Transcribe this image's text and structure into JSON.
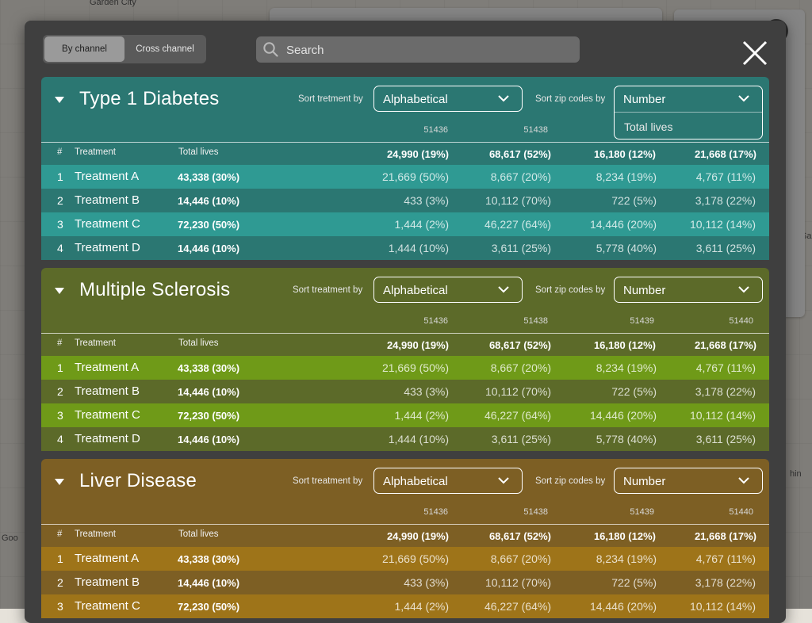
{
  "map": {
    "labels": [
      "Garden City",
      "Goo",
      "Sa",
      "hin"
    ]
  },
  "modal": {
    "view_toggle": {
      "active": "By channel",
      "inactive": "Cross channel"
    },
    "search": {
      "placeholder": "Search"
    }
  },
  "columns": {
    "number": "#",
    "treatment": "Treatment",
    "total": "Total lives"
  },
  "sections": [
    {
      "title": "Type 1 Diabetes",
      "sort_treatment_label": "Sort tretment by",
      "sort_treatment_value": "Alphabetical",
      "sort_zip_label": "Sort zip codes by",
      "sort_zip_value": "Number",
      "sort_zip_open_option": "Total lives",
      "zip_codes": [
        "51436",
        "51438",
        "",
        ""
      ],
      "zip_totals": [
        "24,990 (19%)",
        "68,617 (52%)",
        "16,180 (12%)",
        "21,668 (17%)"
      ],
      "rows": [
        {
          "num": "1",
          "name": "Treatment A",
          "total": "43,338 (30%)",
          "cells": [
            "21,669 (50%)",
            "8,667 (20%)",
            "8,234 (19%)",
            "4,767 (11%)"
          ]
        },
        {
          "num": "2",
          "name": "Treatment B",
          "total": "14,446 (10%)",
          "cells": [
            "433 (3%)",
            "10,112 (70%)",
            "722 (5%)",
            "3,178 (22%)"
          ]
        },
        {
          "num": "3",
          "name": "Treatment C",
          "total": "72,230 (50%)",
          "cells": [
            "1,444 (2%)",
            "46,227 (64%)",
            "14,446 (20%)",
            "10,112 (14%)"
          ]
        },
        {
          "num": "4",
          "name": "Treatment D",
          "total": "14,446 (10%)",
          "cells": [
            "1,444 (10%)",
            "3,611 (25%)",
            "5,778 (40%)",
            "3,611 (25%)"
          ]
        }
      ]
    },
    {
      "title": "Multiple Sclerosis",
      "sort_treatment_label": "Sort treatment by",
      "sort_treatment_value": "Alphabetical",
      "sort_zip_label": "Sort zip codes by",
      "sort_zip_value": "Number",
      "zip_codes": [
        "51436",
        "51438",
        "51439",
        "51440"
      ],
      "zip_totals": [
        "24,990 (19%)",
        "68,617 (52%)",
        "16,180 (12%)",
        "21,668 (17%)"
      ],
      "rows": [
        {
          "num": "1",
          "name": "Treatment A",
          "total": "43,338 (30%)",
          "cells": [
            "21,669 (50%)",
            "8,667 (20%)",
            "8,234 (19%)",
            "4,767 (11%)"
          ]
        },
        {
          "num": "2",
          "name": "Treatment B",
          "total": "14,446 (10%)",
          "cells": [
            "433 (3%)",
            "10,112 (70%)",
            "722 (5%)",
            "3,178 (22%)"
          ]
        },
        {
          "num": "3",
          "name": "Treatment C",
          "total": "72,230 (50%)",
          "cells": [
            "1,444 (2%)",
            "46,227 (64%)",
            "14,446 (20%)",
            "10,112 (14%)"
          ]
        },
        {
          "num": "4",
          "name": "Treatment D",
          "total": "14,446 (10%)",
          "cells": [
            "1,444 (10%)",
            "3,611 (25%)",
            "5,778 (40%)",
            "3,611 (25%)"
          ]
        }
      ]
    },
    {
      "title": "Liver Disease",
      "sort_treatment_label": "Sort treatment by",
      "sort_treatment_value": "Alphabetical",
      "sort_zip_label": "Sort zip codes by",
      "sort_zip_value": "Number",
      "zip_codes": [
        "51436",
        "51438",
        "51439",
        "51440"
      ],
      "zip_totals": [
        "24,990 (19%)",
        "68,617 (52%)",
        "16,180 (12%)",
        "21,668 (17%)"
      ],
      "rows": [
        {
          "num": "1",
          "name": "Treatment A",
          "total": "43,338 (30%)",
          "cells": [
            "21,669 (50%)",
            "8,667 (20%)",
            "8,234 (19%)",
            "4,767 (11%)"
          ]
        },
        {
          "num": "2",
          "name": "Treatment B",
          "total": "14,446 (10%)",
          "cells": [
            "433 (3%)",
            "10,112 (70%)",
            "722 (5%)",
            "3,178 (22%)"
          ]
        },
        {
          "num": "3",
          "name": "Treatment C",
          "total": "72,230 (50%)",
          "cells": [
            "1,444 (2%)",
            "46,227 (64%)",
            "14,446 (20%)",
            "10,112 (14%)"
          ]
        }
      ]
    }
  ],
  "colors": {
    "type1_diabetes": "#2b7772",
    "type1_diabetes_highlight": "#2f9a93",
    "multiple_sclerosis": "#5c6a29",
    "multiple_sclerosis_highlight": "#6f9a18",
    "liver_disease": "#7d5f24",
    "liver_disease_highlight": "#9e7419",
    "modal_bg": "#3f3f3f"
  }
}
